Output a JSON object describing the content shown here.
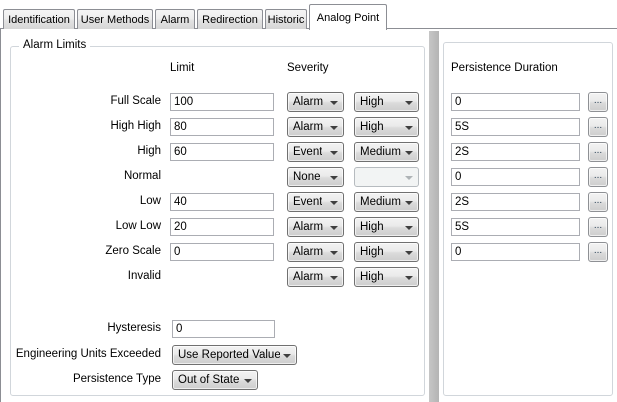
{
  "tabs": [
    {
      "label": "Identification",
      "active": false
    },
    {
      "label": "User Methods",
      "active": false
    },
    {
      "label": "Alarm",
      "active": false
    },
    {
      "label": "Redirection",
      "active": false
    },
    {
      "label": "Historic",
      "active": false
    },
    {
      "label": "Analog Point",
      "active": true
    }
  ],
  "alarm_limits": {
    "title": "Alarm Limits",
    "headers": {
      "limit": "Limit",
      "severity": "Severity",
      "persistence": "Persistence Duration"
    },
    "rows": [
      {
        "label": "Full Scale",
        "limit": "100",
        "severity": "Alarm",
        "priority": "High",
        "persistence": "0"
      },
      {
        "label": "High High",
        "limit": "80",
        "severity": "Alarm",
        "priority": "High",
        "persistence": "5S"
      },
      {
        "label": "High",
        "limit": "60",
        "severity": "Event",
        "priority": "Medium",
        "persistence": "2S"
      },
      {
        "label": "Normal",
        "severity": "None",
        "priority": "",
        "persistence": "0"
      },
      {
        "label": "Low",
        "limit": "40",
        "severity": "Event",
        "priority": "Medium",
        "persistence": "2S"
      },
      {
        "label": "Low Low",
        "limit": "20",
        "severity": "Alarm",
        "priority": "High",
        "persistence": "5S"
      },
      {
        "label": "Zero Scale",
        "limit": "0",
        "severity": "Alarm",
        "priority": "High",
        "persistence": "0"
      },
      {
        "label": "Invalid",
        "severity": "Alarm",
        "priority": "High"
      }
    ],
    "browse_label": "...",
    "hysteresis": {
      "label": "Hysteresis",
      "value": "0"
    },
    "engineering_units_exceeded": {
      "label": "Engineering Units Exceeded",
      "value": "Use Reported Value"
    },
    "persistence_type": {
      "label": "Persistence Type",
      "value": "Out of State"
    }
  },
  "colors": {
    "splitter": "#BDBDBD",
    "groupbox_border": "#D1D6DB",
    "tab_border": "#8C8E94",
    "combo_border": "#707070",
    "textbox_border": "#ABADB3"
  }
}
